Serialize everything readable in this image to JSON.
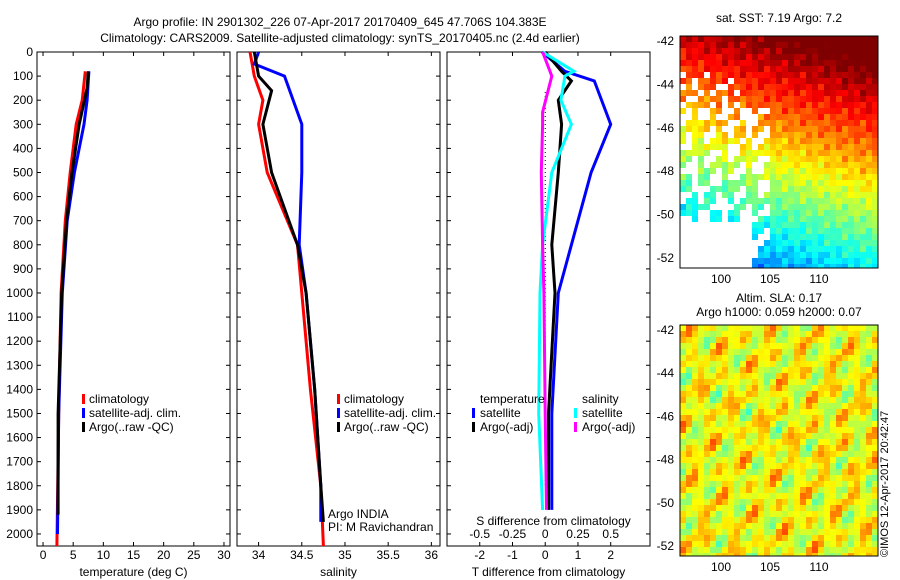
{
  "title_line1": "Argo profile: IN 2901302_226 07-Apr-2017 20170409_645 47.706S 104.383E",
  "title_line2": "Climatology: CARS2009. Satellite-adjusted climatology: synTS_20170405.nc (2.4d earlier)",
  "depth_ticks": [
    0,
    100,
    200,
    300,
    400,
    500,
    600,
    700,
    800,
    900,
    1000,
    1100,
    1200,
    1300,
    1400,
    1500,
    1600,
    1700,
    1800,
    1900,
    2000
  ],
  "chart_data": [
    {
      "type": "line",
      "xlabel": "temperature (deg C)",
      "xlim": [
        -1,
        31
      ],
      "ylim": [
        2050,
        0
      ],
      "xticks": [
        0,
        5,
        10,
        15,
        20,
        25,
        30
      ],
      "legend": [
        "climatology",
        "satellite-adj. clim.",
        "Argo(..raw -QC)"
      ],
      "series": [
        {
          "name": "climatology",
          "color": "#ff0000",
          "depth": [
            80,
            200,
            300,
            500,
            700,
            1000,
            1500,
            2050
          ],
          "values": [
            7.0,
            6.5,
            5.5,
            4.5,
            3.7,
            3.0,
            2.6,
            2.3
          ]
        },
        {
          "name": "satellite-adj. clim.",
          "color": "#0000ff",
          "depth": [
            80,
            200,
            300,
            500,
            700,
            1000,
            1500,
            2000
          ],
          "values": [
            7.6,
            7.3,
            6.8,
            5.2,
            4.0,
            3.2,
            2.6,
            2.4
          ]
        },
        {
          "name": "Argo(..raw -QC)",
          "color": "#000000",
          "depth": [
            80,
            150,
            300,
            500,
            700,
            1000,
            1500,
            1920
          ],
          "values": [
            7.5,
            7.3,
            6.0,
            4.8,
            3.9,
            3.1,
            2.5,
            2.5
          ]
        }
      ]
    },
    {
      "type": "line",
      "xlabel": "salinity",
      "xlim": [
        33.75,
        36.1
      ],
      "ylim": [
        2050,
        0
      ],
      "xticks": [
        34,
        34.5,
        35,
        35.5,
        36
      ],
      "legend": [
        "climatology",
        "satellite-adj. clim.",
        "Argo(..raw -QC)"
      ],
      "annotation": [
        "Argo INDIA",
        "PI: M Ravichandran"
      ],
      "series": [
        {
          "name": "climatology",
          "color": "#ff0000",
          "depth": [
            0,
            100,
            200,
            300,
            500,
            800,
            1000,
            1400,
            1800,
            2050
          ],
          "values": [
            33.9,
            33.95,
            34.05,
            34.0,
            34.1,
            34.45,
            34.5,
            34.6,
            34.72,
            34.75
          ]
        },
        {
          "name": "satellite-adj. clim.",
          "color": "#0000ff",
          "depth": [
            0,
            50,
            100,
            300,
            500,
            800,
            1000,
            1400,
            1800,
            1950
          ],
          "values": [
            34.0,
            33.95,
            34.3,
            34.5,
            34.5,
            34.47,
            34.55,
            34.65,
            34.72,
            34.72
          ]
        },
        {
          "name": "Argo(..raw -QC)",
          "color": "#000000",
          "depth": [
            0,
            100,
            160,
            300,
            500,
            800,
            1000,
            1400,
            1800,
            1950
          ],
          "values": [
            33.95,
            34.0,
            34.15,
            34.05,
            34.15,
            34.45,
            34.55,
            34.65,
            34.72,
            34.75
          ]
        }
      ]
    },
    {
      "type": "line",
      "xlabel": "T difference from climatology",
      "x2label": "S difference from climatology",
      "xlim": [
        -3,
        3.2
      ],
      "ylim": [
        2050,
        0
      ],
      "xticks": [
        -2,
        -1,
        0,
        1,
        2
      ],
      "x2ticks": [
        -0.5,
        -0.25,
        0,
        0.25,
        0.5
      ],
      "x2ticklabels": [
        "-0.5",
        "-0.25",
        "0",
        "0.25",
        "0.5"
      ],
      "legend_t_title": "temperature",
      "legend_s_title": "salinity",
      "legend": [
        "satellite",
        "Argo(-adj)",
        "satellite",
        "Argo(-adj)"
      ],
      "series": [
        {
          "name": "T satellite",
          "color": "#0000ff",
          "units": "T",
          "depth": [
            0,
            80,
            120,
            300,
            500,
            800,
            1000,
            1500,
            1900
          ],
          "values": [
            -0.1,
            0.6,
            1.5,
            2.0,
            1.4,
            0.8,
            0.4,
            0.2,
            0.2
          ]
        },
        {
          "name": "T Argo(-adj)",
          "color": "#000000",
          "units": "T",
          "depth": [
            0,
            80,
            120,
            200,
            300,
            500,
            800,
            1000,
            1500,
            1900
          ],
          "values": [
            0,
            0.5,
            0.8,
            0.4,
            0.5,
            0.4,
            0.2,
            0.3,
            0.1,
            0.1
          ]
        },
        {
          "name": "S satellite",
          "color": "#00ffff",
          "units": "S",
          "depth": [
            0,
            80,
            100,
            200,
            300,
            500,
            800,
            1000,
            1500,
            1900
          ],
          "values": [
            -0.02,
            0.22,
            0.15,
            0.12,
            0.2,
            0.05,
            -0.02,
            -0.04,
            -0.05,
            -0.02
          ]
        },
        {
          "name": "S Argo(-adj)",
          "color": "#ff00ff",
          "units": "S",
          "depth": [
            0,
            100,
            250,
            300,
            500,
            800,
            1000,
            1500,
            1900
          ],
          "values": [
            -0.02,
            0.05,
            -0.02,
            -0.02,
            -0.03,
            -0.02,
            -0.01,
            0.0,
            0.01
          ]
        }
      ]
    }
  ],
  "map_sst": {
    "title": "sat. SST: 7.19 Argo: 7.2",
    "yticks": [
      "-42",
      "-44",
      "-46",
      "-48",
      "-50",
      "-52"
    ],
    "xticks": [
      "100",
      "105",
      "110"
    ]
  },
  "map_sla": {
    "title1": "Altim. SLA: 0.17",
    "title2": "Argo h1000: 0.059 h2000: 0.07",
    "yticks": [
      "-42",
      "-44",
      "-46",
      "-48",
      "-50",
      "-52"
    ],
    "xticks": [
      "100",
      "105",
      "110"
    ]
  },
  "credit": "©IMOS 12-Apr-2017 20:42:47"
}
